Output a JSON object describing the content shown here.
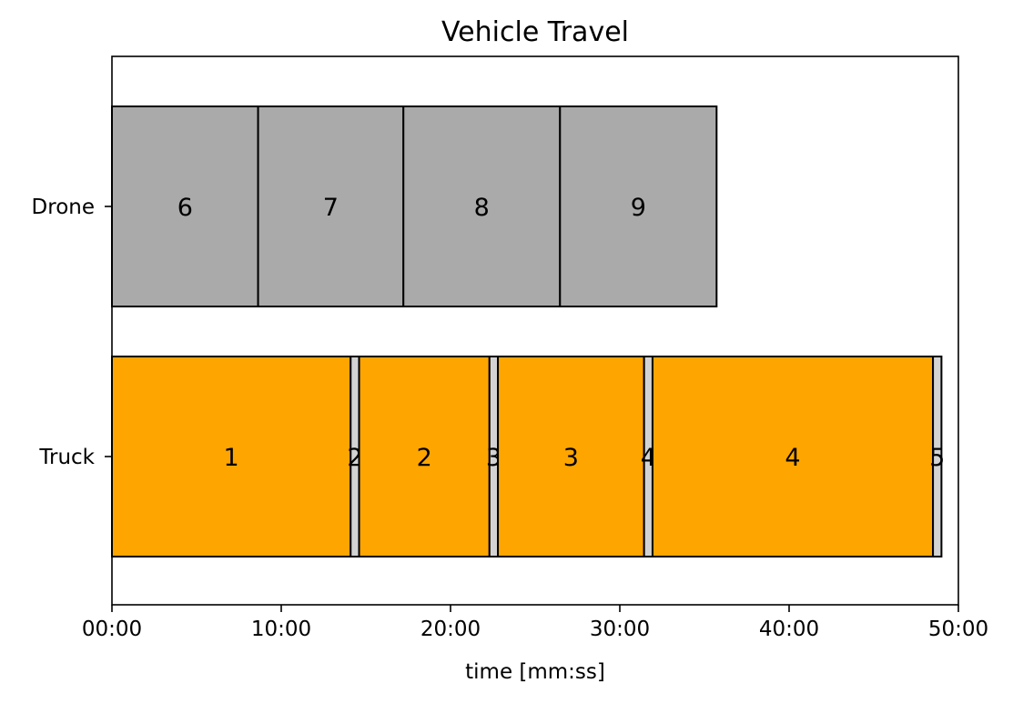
{
  "chart_data": {
    "type": "bar",
    "orientation": "horizontal",
    "title": "Vehicle Travel",
    "xlabel": "time [mm:ss]",
    "ylabel": "",
    "xlim": [
      0,
      3000
    ],
    "x_unit": "seconds",
    "x_ticks": [
      0,
      600,
      1200,
      1800,
      2400,
      3000
    ],
    "x_tick_labels": [
      "00:00",
      "10:00",
      "20:00",
      "30:00",
      "40:00",
      "50:00"
    ],
    "categories": [
      "Drone",
      "Truck"
    ],
    "grid": false,
    "colors": {
      "travel_truck": "#ffa500",
      "travel_drone": "#aaaaaa",
      "service": "#d3d3d3",
      "edge": "#000000"
    },
    "series": [
      {
        "category": "Drone",
        "segments": [
          {
            "label": "6",
            "start": 0,
            "end": 518,
            "kind": "travel_drone"
          },
          {
            "label": "7",
            "start": 518,
            "end": 1033,
            "kind": "travel_drone"
          },
          {
            "label": "8",
            "start": 1033,
            "end": 1588,
            "kind": "travel_drone"
          },
          {
            "label": "9",
            "start": 1588,
            "end": 2143,
            "kind": "travel_drone"
          }
        ]
      },
      {
        "category": "Truck",
        "segments": [
          {
            "label": "1",
            "start": 0,
            "end": 846,
            "kind": "travel_truck"
          },
          {
            "label": "2",
            "start": 846,
            "end": 876,
            "kind": "service"
          },
          {
            "label": "2",
            "start": 876,
            "end": 1338,
            "kind": "travel_truck"
          },
          {
            "label": "3",
            "start": 1338,
            "end": 1368,
            "kind": "service"
          },
          {
            "label": "3",
            "start": 1368,
            "end": 1886,
            "kind": "travel_truck"
          },
          {
            "label": "4",
            "start": 1886,
            "end": 1916,
            "kind": "service"
          },
          {
            "label": "4",
            "start": 1916,
            "end": 2910,
            "kind": "travel_truck"
          },
          {
            "label": "5",
            "start": 2910,
            "end": 2940,
            "kind": "service"
          }
        ]
      }
    ]
  }
}
